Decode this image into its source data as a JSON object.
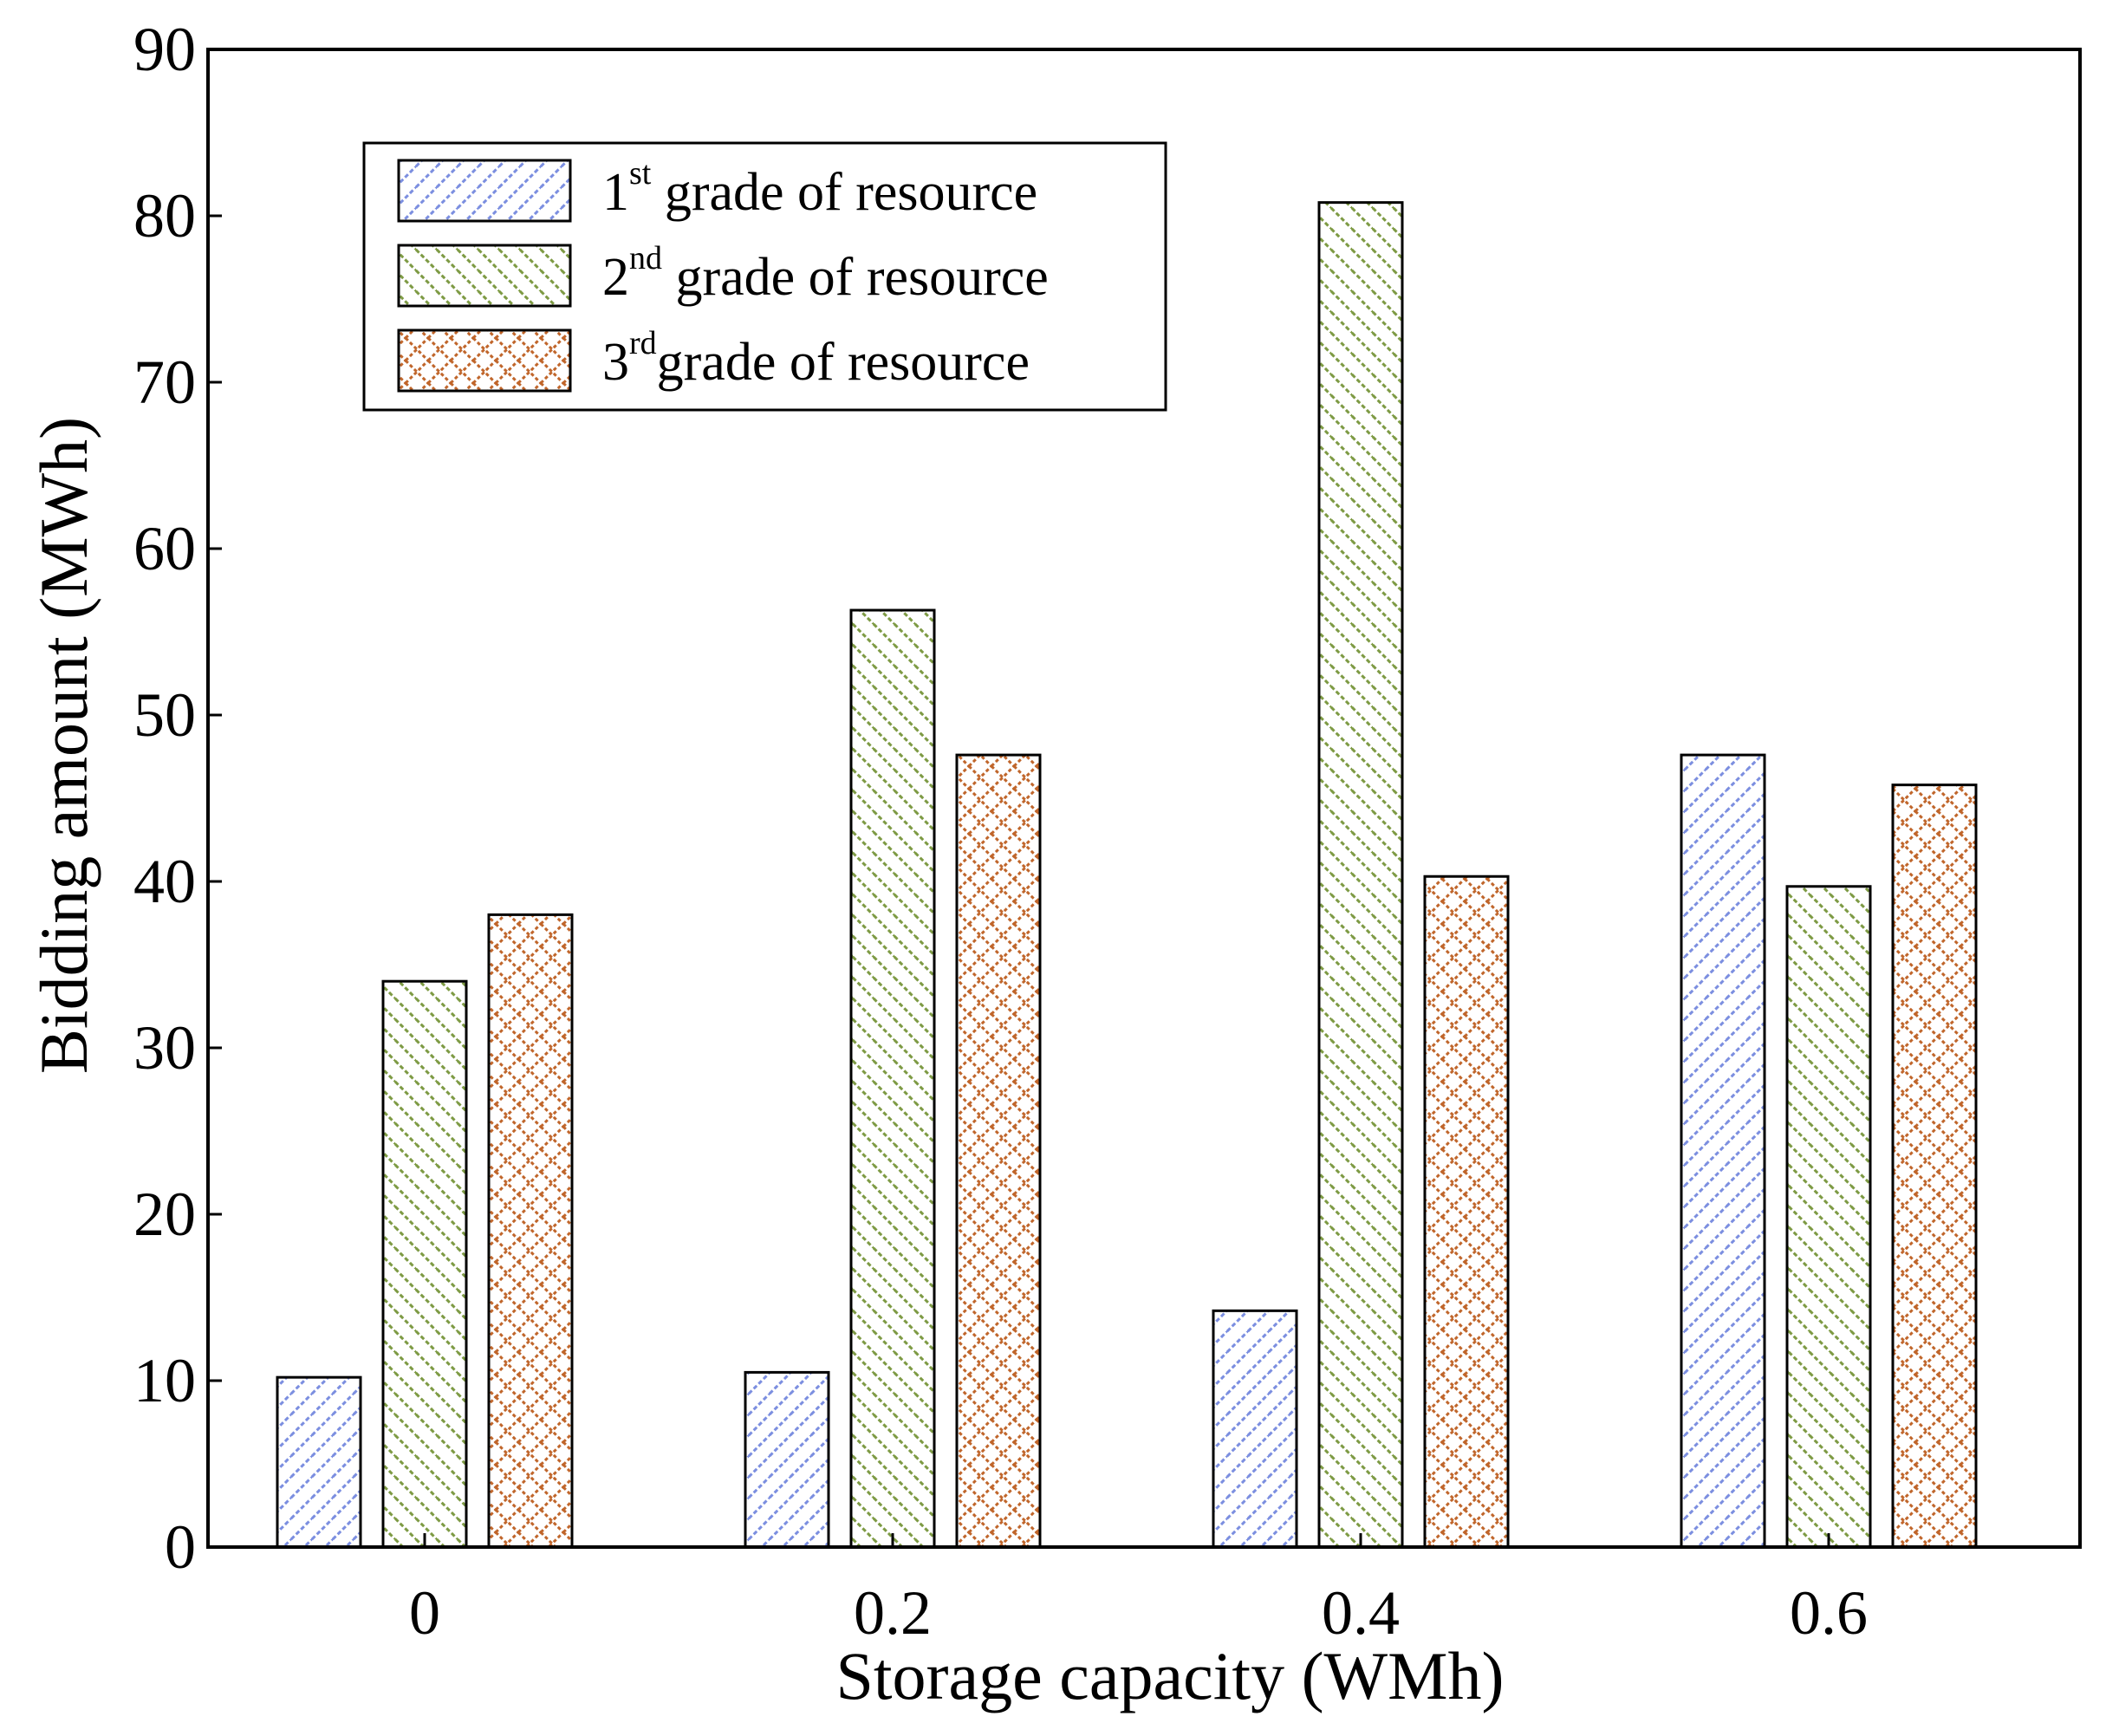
{
  "chart_data": {
    "type": "bar",
    "title": "",
    "xlabel": "Storage capacity (WMh)",
    "ylabel": "Bidding amount (MWh)",
    "ylim": [
      0,
      90
    ],
    "yticks": [
      "0",
      "10",
      "20",
      "30",
      "40",
      "50",
      "60",
      "70",
      "80",
      "90"
    ],
    "categories": [
      "0",
      "0.2",
      "0.4",
      "0.6"
    ],
    "legend_position": "top-left",
    "series": [
      {
        "name": "1st grade of resource",
        "num": "1",
        "sup": "st",
        "text": " grade of resource",
        "color": "#7b8ee0",
        "pattern": "diag-forward",
        "values": [
          10.2,
          10.5,
          14.2,
          47.6
        ]
      },
      {
        "name": "2nd grade of resource",
        "num": "2",
        "sup": "nd",
        "text": " grade of resource",
        "color": "#7d9a43",
        "pattern": "diag-back",
        "values": [
          34.0,
          56.3,
          80.8,
          39.7
        ]
      },
      {
        "name": "3rd grade of resource",
        "num": "3",
        "sup": "rd",
        "text": "grade of resource",
        "color": "#c0652a",
        "pattern": "crosshatch",
        "values": [
          38.0,
          47.6,
          40.3,
          45.8
        ]
      }
    ]
  }
}
